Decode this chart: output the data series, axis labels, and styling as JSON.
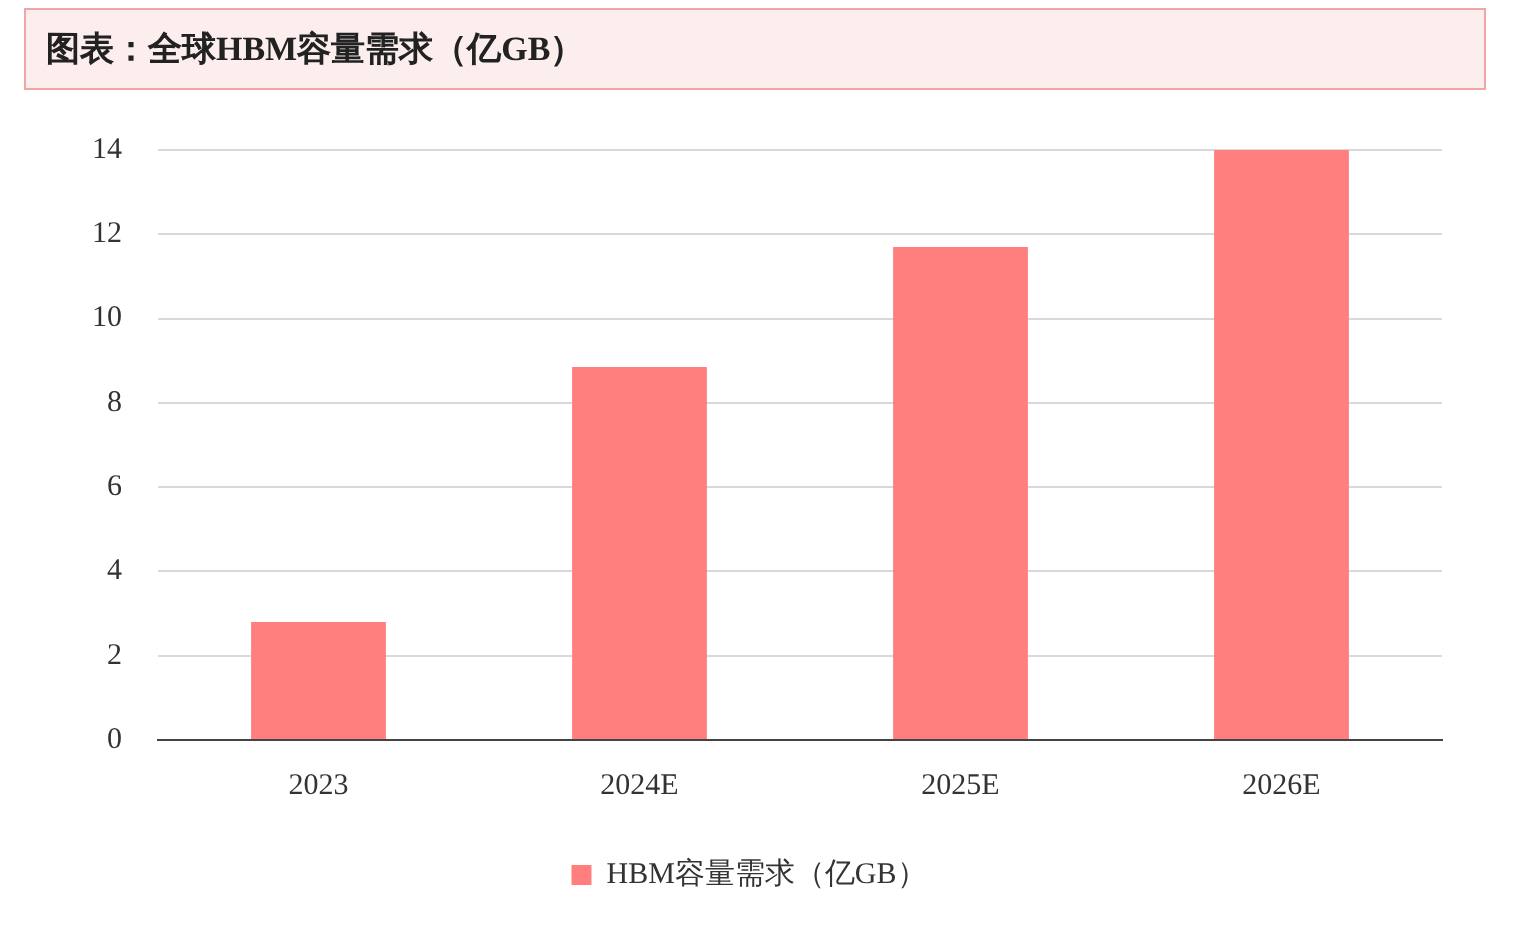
{
  "chart_data": {
    "type": "bar",
    "title": "图表：全球HBM容量需求（亿GB）",
    "categories": [
      "2023",
      "2024E",
      "2025E",
      "2026E"
    ],
    "series": [
      {
        "name": "HBM容量需求（亿GB）",
        "color": "#ff7f7f",
        "values": [
          2.8,
          8.85,
          11.7,
          14.0
        ]
      }
    ],
    "ylim": [
      0,
      14
    ],
    "yticks": [
      0,
      2,
      4,
      6,
      8,
      10,
      12,
      14
    ],
    "grid": "y",
    "legend": "bottom"
  }
}
